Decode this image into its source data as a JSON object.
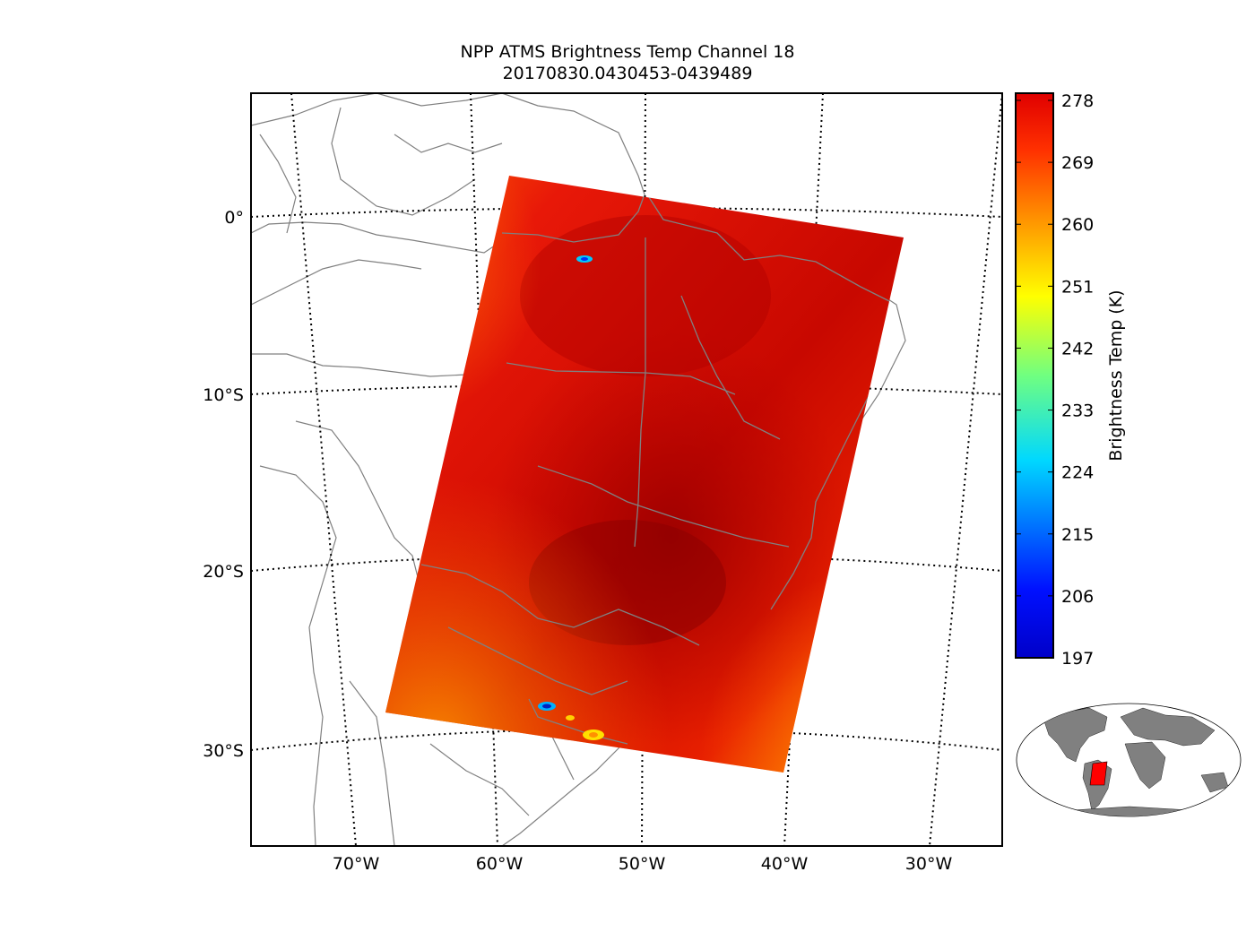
{
  "title": {
    "line1": "NPP ATMS Brightness Temp Channel 18",
    "line2": "20170830.0430453-0439489"
  },
  "map": {
    "lat_labels": [
      "0°",
      "10°S",
      "20°S",
      "30°S"
    ],
    "lon_labels": [
      "70°W",
      "60°W",
      "50°W",
      "40°W",
      "30°W"
    ],
    "swath_colors": {
      "dominant": "#e01010",
      "dark": "#a80000",
      "edge": "#ff7a00",
      "cold_spot": "#00c0ff"
    },
    "coastline_color": "#808080"
  },
  "colorbar": {
    "label": "Brightness Temp (K)",
    "ticks": [
      "278",
      "269",
      "260",
      "251",
      "242",
      "233",
      "224",
      "215",
      "206",
      "197"
    ],
    "min": 197,
    "max": 278,
    "colormap": "jet"
  },
  "inset": {
    "land_color": "#808080",
    "highlight_color": "#ff0000"
  }
}
